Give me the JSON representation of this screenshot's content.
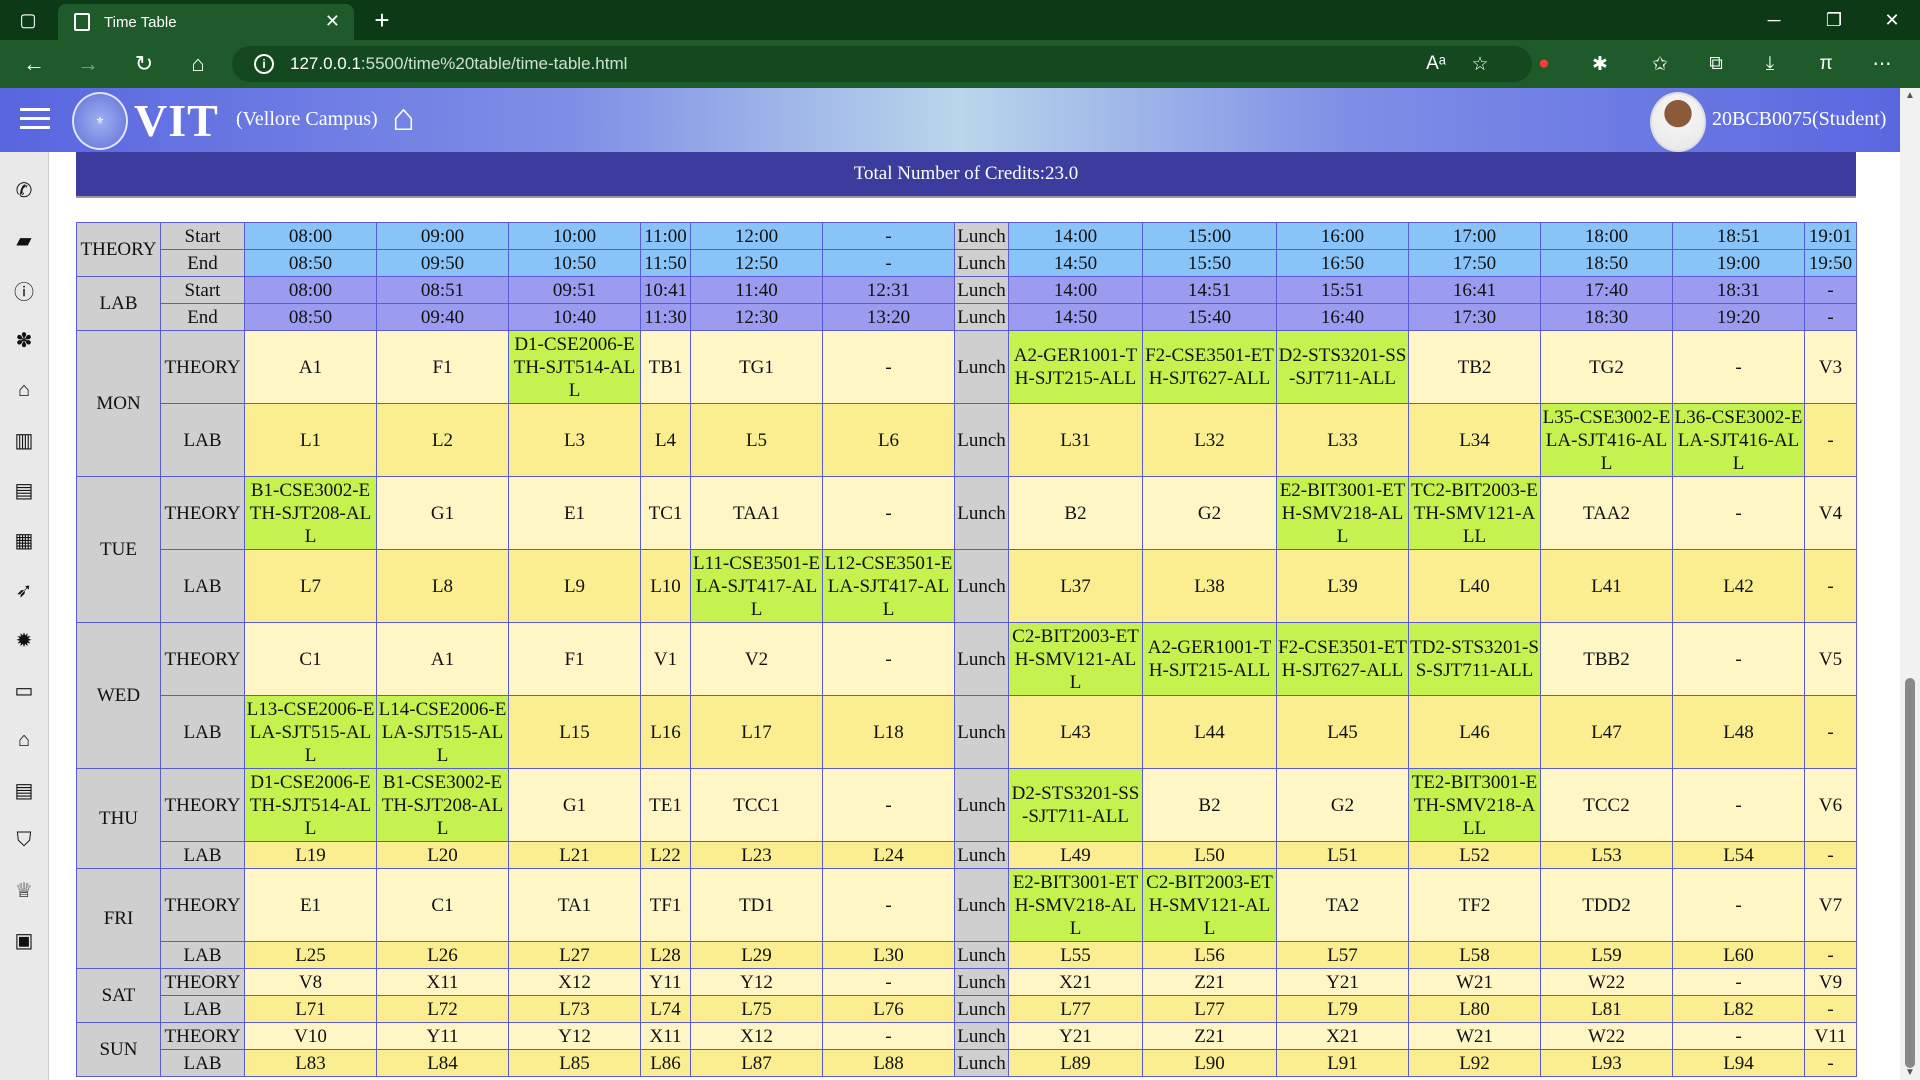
{
  "browser": {
    "tab_title": "Time Table",
    "url_host": "127.0.0.1",
    "url_path": ":5500/time%20table/time-table.html"
  },
  "header": {
    "brand": "VIT",
    "campus": "(Vellore Campus)",
    "user": "20BCB0075(Student)"
  },
  "credits": "Total Number of Credits:23.0",
  "sidebar_icons": [
    "phone-icon",
    "briefcase-icon",
    "info-icon",
    "paw-icon",
    "graduation-cap-icon",
    "bank-icon",
    "book-icon",
    "institution-icon",
    "rocket-icon",
    "gear-icon",
    "visa-card-icon",
    "home-icon",
    "open-book-icon",
    "shield-icon",
    "trophy-icon",
    "lock-icon"
  ],
  "timetable": {
    "theory_label": "THEORY",
    "lab_label": "LAB",
    "start_label": "Start",
    "end_label": "End",
    "theory_start": [
      "08:00",
      "09:00",
      "10:00",
      "11:00",
      "12:00",
      "-",
      "Lunch",
      "14:00",
      "15:00",
      "16:00",
      "17:00",
      "18:00",
      "18:51",
      "19:01"
    ],
    "theory_end": [
      "08:50",
      "09:50",
      "10:50",
      "11:50",
      "12:50",
      "-",
      "Lunch",
      "14:50",
      "15:50",
      "16:50",
      "17:50",
      "18:50",
      "19:00",
      "19:50"
    ],
    "lab_start": [
      "08:00",
      "08:51",
      "09:51",
      "10:41",
      "11:40",
      "12:31",
      "Lunch",
      "14:00",
      "14:51",
      "15:51",
      "16:41",
      "17:40",
      "18:31",
      "-"
    ],
    "lab_end": [
      "08:50",
      "09:40",
      "10:40",
      "11:30",
      "12:30",
      "13:20",
      "Lunch",
      "14:50",
      "15:40",
      "16:40",
      "17:30",
      "18:30",
      "19:20",
      "-"
    ],
    "days": [
      {
        "day": "MON",
        "theory": [
          "A1",
          "F1",
          "D1-CSE2006-ETH-SJT514-ALL",
          "TB1",
          "TG1",
          "-",
          "Lunch",
          "A2-GER1001-TH-SJT215-ALL",
          "F2-CSE3501-ETH-SJT627-ALL",
          "D2-STS3201-SS-SJT711-ALL",
          "TB2",
          "TG2",
          "-",
          "V3"
        ],
        "lab": [
          "L1",
          "L2",
          "L3",
          "L4",
          "L5",
          "L6",
          "Lunch",
          "L31",
          "L32",
          "L33",
          "L34",
          "L35-CSE3002-ELA-SJT416-ALL",
          "L36-CSE3002-ELA-SJT416-ALL",
          "-"
        ]
      },
      {
        "day": "TUE",
        "theory": [
          "B1-CSE3002-ETH-SJT208-ALL",
          "G1",
          "E1",
          "TC1",
          "TAA1",
          "-",
          "Lunch",
          "B2",
          "G2",
          "E2-BIT3001-ETH-SMV218-ALL",
          "TC2-BIT2003-ETH-SMV121-ALL",
          "TAA2",
          "-",
          "V4"
        ],
        "lab": [
          "L7",
          "L8",
          "L9",
          "L10",
          "L11-CSE3501-ELA-SJT417-ALL",
          "L12-CSE3501-ELA-SJT417-ALL",
          "Lunch",
          "L37",
          "L38",
          "L39",
          "L40",
          "L41",
          "L42",
          "-"
        ]
      },
      {
        "day": "WED",
        "theory": [
          "C1",
          "A1",
          "F1",
          "V1",
          "V2",
          "-",
          "Lunch",
          "C2-BIT2003-ETH-SMV121-ALL",
          "A2-GER1001-TH-SJT215-ALL",
          "F2-CSE3501-ETH-SJT627-ALL",
          "TD2-STS3201-SS-SJT711-ALL",
          "TBB2",
          "-",
          "V5"
        ],
        "lab": [
          "L13-CSE2006-ELA-SJT515-ALL",
          "L14-CSE2006-ELA-SJT515-ALL",
          "L15",
          "L16",
          "L17",
          "L18",
          "Lunch",
          "L43",
          "L44",
          "L45",
          "L46",
          "L47",
          "L48",
          "-"
        ]
      },
      {
        "day": "THU",
        "theory": [
          "D1-CSE2006-ETH-SJT514-ALL",
          "B1-CSE3002-ETH-SJT208-ALL",
          "G1",
          "TE1",
          "TCC1",
          "-",
          "Lunch",
          "D2-STS3201-SS-SJT711-ALL",
          "B2",
          "G2",
          "TE2-BIT3001-ETH-SMV218-ALL",
          "TCC2",
          "-",
          "V6"
        ],
        "lab": [
          "L19",
          "L20",
          "L21",
          "L22",
          "L23",
          "L24",
          "Lunch",
          "L49",
          "L50",
          "L51",
          "L52",
          "L53",
          "L54",
          "-"
        ]
      },
      {
        "day": "FRI",
        "theory": [
          "E1",
          "C1",
          "TA1",
          "TF1",
          "TD1",
          "-",
          "Lunch",
          "E2-BIT3001-ETH-SMV218-ALL",
          "C2-BIT2003-ETH-SMV121-ALL",
          "TA2",
          "TF2",
          "TDD2",
          "-",
          "V7"
        ],
        "lab": [
          "L25",
          "L26",
          "L27",
          "L28",
          "L29",
          "L30",
          "Lunch",
          "L55",
          "L56",
          "L57",
          "L58",
          "L59",
          "L60",
          "-"
        ]
      },
      {
        "day": "SAT",
        "theory": [
          "V8",
          "X11",
          "X12",
          "Y11",
          "Y12",
          "-",
          "Lunch",
          "X21",
          "Z21",
          "Y21",
          "W21",
          "W22",
          "-",
          "V9"
        ],
        "lab": [
          "L71",
          "L72",
          "L73",
          "L74",
          "L75",
          "L76",
          "Lunch",
          "L77",
          "L77",
          "L79",
          "L80",
          "L81",
          "L82",
          "-"
        ]
      },
      {
        "day": "SUN",
        "theory": [
          "V10",
          "Y11",
          "Y12",
          "X11",
          "X12",
          "-",
          "Lunch",
          "Y21",
          "Z21",
          "X21",
          "W21",
          "W22",
          "-",
          "V11"
        ],
        "lab": [
          "L83",
          "L84",
          "L85",
          "L86",
          "L87",
          "L88",
          "Lunch",
          "L89",
          "L90",
          "L91",
          "L92",
          "L93",
          "L94",
          "-"
        ]
      }
    ]
  },
  "colors": {
    "registered": "#c5f24f",
    "theory_cell": "#fff6c6",
    "lab_cell": "#fbee91",
    "theory_header": "#89c4f8",
    "lab_header": "#9b9bf0",
    "label_bg": "#cfcfcf"
  }
}
